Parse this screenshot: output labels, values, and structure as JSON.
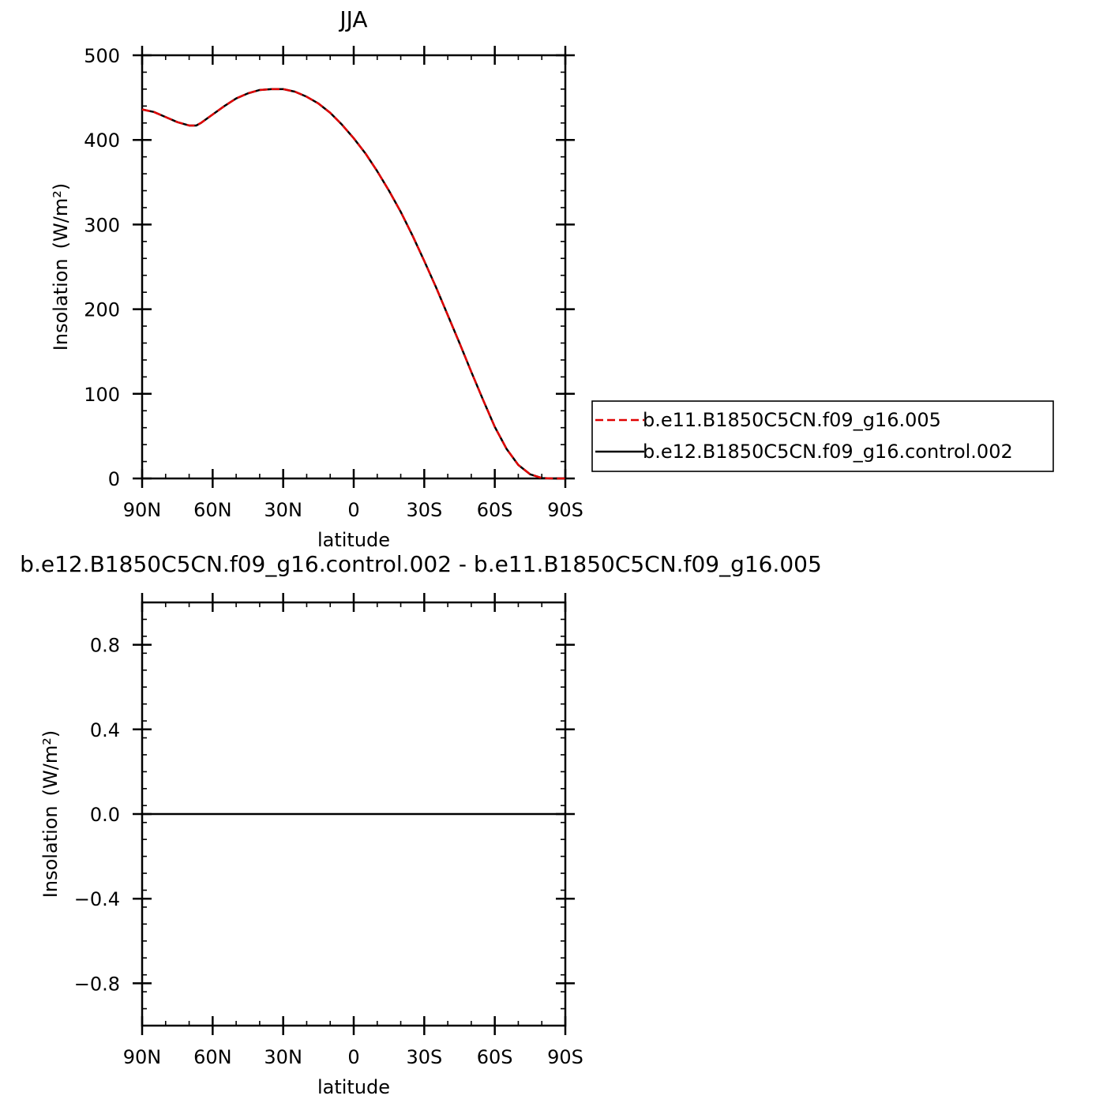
{
  "chart_data": [
    {
      "type": "line",
      "title": "JJA",
      "xlabel": "latitude",
      "ylabel": "Insolation",
      "ylabel_unit": "(W/m²)",
      "xlim": [
        90,
        -90
      ],
      "ylim": [
        0,
        500
      ],
      "x_ticks": [
        {
          "value": 90,
          "label": "90N"
        },
        {
          "value": 60,
          "label": "60N"
        },
        {
          "value": 30,
          "label": "30N"
        },
        {
          "value": 0,
          "label": "0"
        },
        {
          "value": -30,
          "label": "30S"
        },
        {
          "value": -60,
          "label": "60S"
        },
        {
          "value": -90,
          "label": "90S"
        }
      ],
      "y_ticks": [
        {
          "value": 0,
          "label": "0"
        },
        {
          "value": 100,
          "label": "100"
        },
        {
          "value": 200,
          "label": "200"
        },
        {
          "value": 300,
          "label": "300"
        },
        {
          "value": 400,
          "label": "400"
        },
        {
          "value": 500,
          "label": "500"
        }
      ],
      "grid": false,
      "legend_position": "right",
      "x": [
        90,
        85,
        80,
        75,
        70,
        67,
        65,
        60,
        55,
        50,
        45,
        40,
        35,
        30,
        25,
        20,
        15,
        10,
        5,
        0,
        -5,
        -10,
        -15,
        -20,
        -25,
        -30,
        -35,
        -40,
        -45,
        -50,
        -55,
        -60,
        -65,
        -70,
        -75,
        -80,
        -85,
        -90
      ],
      "series": [
        {
          "name": "b.e11.B1850C5CN.f09_g16.005",
          "color": "#e00000",
          "dash": "dashed",
          "values": [
            436,
            433,
            427,
            421,
            417,
            417,
            420,
            430,
            440,
            449,
            455,
            459,
            460,
            460,
            457,
            451,
            443,
            432,
            418,
            402,
            384,
            363,
            340,
            315,
            287,
            257,
            226,
            193,
            160,
            126,
            93,
            61,
            35,
            16,
            5,
            0.5,
            0,
            0
          ]
        },
        {
          "name": "b.e12.B1850C5CN.f09_g16.control.002",
          "color": "#000000",
          "dash": "solid",
          "values": [
            436,
            433,
            427,
            421,
            417,
            417,
            420,
            430,
            440,
            449,
            455,
            459,
            460,
            460,
            457,
            451,
            443,
            432,
            418,
            402,
            384,
            363,
            340,
            315,
            287,
            257,
            226,
            193,
            160,
            126,
            93,
            61,
            35,
            16,
            5,
            0.5,
            0,
            0
          ]
        }
      ]
    },
    {
      "type": "line",
      "title": "b.e12.B1850C5CN.f09_g16.control.002 - b.e11.B1850C5CN.f09_g16.005",
      "xlabel": "latitude",
      "ylabel": "Insolation",
      "ylabel_unit": "(W/m²)",
      "xlim": [
        90,
        -90
      ],
      "ylim": [
        -1,
        1
      ],
      "x_ticks": [
        {
          "value": 90,
          "label": "90N"
        },
        {
          "value": 60,
          "label": "60N"
        },
        {
          "value": 30,
          "label": "30N"
        },
        {
          "value": 0,
          "label": "0"
        },
        {
          "value": -30,
          "label": "30S"
        },
        {
          "value": -60,
          "label": "60S"
        },
        {
          "value": -90,
          "label": "90S"
        }
      ],
      "y_ticks": [
        {
          "value": -0.8,
          "label": "−0.8"
        },
        {
          "value": -0.4,
          "label": "−0.4"
        },
        {
          "value": 0.0,
          "label": "0.0"
        },
        {
          "value": 0.4,
          "label": "0.4"
        },
        {
          "value": 0.8,
          "label": "0.8"
        }
      ],
      "grid": false,
      "x": [
        90,
        -90
      ],
      "series": [
        {
          "color": "#000000",
          "dash": "solid",
          "values": [
            0,
            0
          ]
        }
      ]
    }
  ]
}
